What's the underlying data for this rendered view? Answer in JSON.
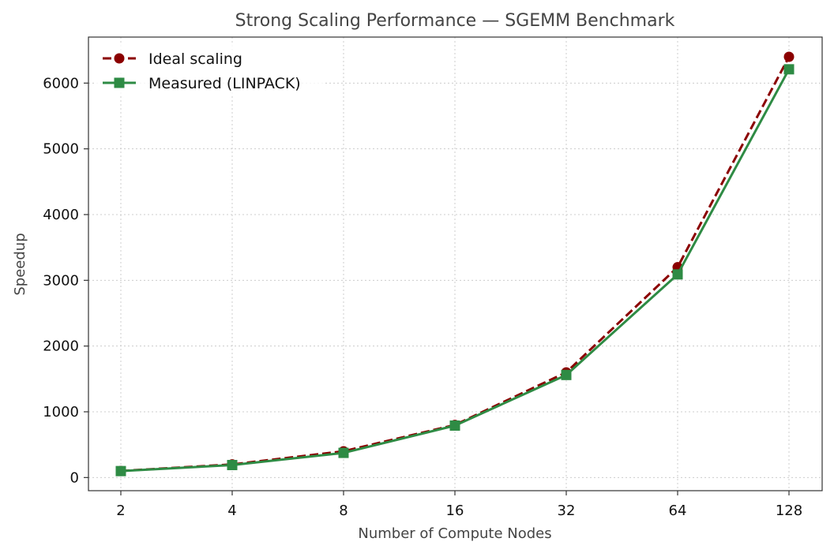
{
  "chart_data": {
    "type": "line",
    "title": "Strong Scaling Performance — SGEMM Benchmark",
    "xlabel": "Number of Compute Nodes",
    "ylabel": "Speedup",
    "x_scale": "log2",
    "x": [
      2,
      4,
      8,
      16,
      32,
      64,
      128
    ],
    "x_tick_labels": [
      "2",
      "4",
      "8",
      "16",
      "32",
      "64",
      "128"
    ],
    "ylim": [
      -200,
      6700
    ],
    "y_ticks": [
      0,
      1000,
      2000,
      3000,
      4000,
      5000,
      6000
    ],
    "grid": true,
    "legend_position": "top-left",
    "series": [
      {
        "name": "Ideal scaling",
        "values": [
          100,
          200,
          400,
          800,
          1600,
          3200,
          6400
        ],
        "color": "#8b0000",
        "line_style": "dashed",
        "marker": "circle"
      },
      {
        "name": "Measured (LINPACK)",
        "values": [
          98,
          190,
          375,
          790,
          1560,
          3090,
          6210
        ],
        "color": "#2e8b44",
        "line_style": "solid",
        "marker": "square"
      }
    ]
  }
}
